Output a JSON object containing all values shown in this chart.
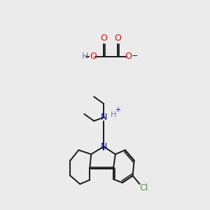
{
  "bg_color": "#ebebeb",
  "figsize": [
    3.0,
    3.0
  ],
  "dpi": 100,
  "colors": {
    "bond": "#1a1a1a",
    "O": "#ff0000",
    "N": "#0000ee",
    "Cl": "#33aa33",
    "H": "#708090",
    "C": "#1a1a1a",
    "minus": "#1a1a1a"
  }
}
